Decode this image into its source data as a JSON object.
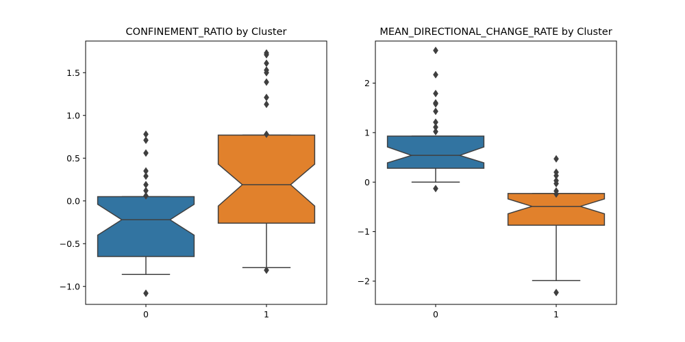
{
  "chart_data": [
    {
      "type": "box",
      "title": "CONFINEMENT_RATIO by Cluster",
      "xlabel": "",
      "ylabel": "",
      "categories": [
        "0",
        "1"
      ],
      "ylim": [
        -1.21,
        1.87
      ],
      "yticks": [
        -1.0,
        -0.5,
        0.0,
        0.5,
        1.0,
        1.5
      ],
      "ytick_labels": [
        "−1.0",
        "−0.5",
        "0.0",
        "0.5",
        "1.0",
        "1.5"
      ],
      "notched": true,
      "boxes": [
        {
          "category": "0",
          "color": "#3274a1",
          "q1": -0.65,
          "median": -0.22,
          "q3": 0.05,
          "notch_low": -0.4,
          "notch_high": -0.04,
          "whisker_low": -0.86,
          "whisker_high": 0.05,
          "outliers": [
            0.78,
            0.71,
            0.56,
            0.35,
            0.29,
            0.19,
            0.12,
            0.06,
            -1.08
          ]
        },
        {
          "category": "1",
          "color": "#e1812c",
          "q1": -0.26,
          "median": 0.19,
          "q3": 0.77,
          "notch_low": -0.06,
          "notch_high": 0.43,
          "whisker_low": -0.78,
          "whisker_high": 0.77,
          "outliers": [
            1.73,
            1.71,
            1.61,
            1.53,
            1.5,
            1.39,
            1.21,
            1.13,
            0.78,
            -0.81
          ]
        }
      ]
    },
    {
      "type": "box",
      "title": "MEAN_DIRECTIONAL_CHANGE_RATE by Cluster",
      "xlabel": "",
      "ylabel": "",
      "categories": [
        "0",
        "1"
      ],
      "ylim": [
        -2.47,
        2.85
      ],
      "yticks": [
        -2,
        -1,
        0,
        1,
        2
      ],
      "ytick_labels": [
        "−2",
        "−1",
        "0",
        "1",
        "2"
      ],
      "notched": true,
      "boxes": [
        {
          "category": "0",
          "color": "#3274a1",
          "q1": 0.28,
          "median": 0.54,
          "q3": 0.93,
          "notch_low": 0.39,
          "notch_high": 0.71,
          "whisker_low": 0.0,
          "whisker_high": 0.93,
          "outliers": [
            2.66,
            2.17,
            1.79,
            1.6,
            1.58,
            1.43,
            1.21,
            1.11,
            1.02,
            -0.13
          ]
        },
        {
          "category": "1",
          "color": "#e1812c",
          "q1": -0.87,
          "median": -0.49,
          "q3": -0.23,
          "notch_low": -0.64,
          "notch_high": -0.34,
          "whisker_low": -1.99,
          "whisker_high": -0.23,
          "outliers": [
            0.47,
            0.2,
            0.13,
            0.03,
            -0.03,
            -0.18,
            -0.24,
            -2.23
          ]
        }
      ]
    }
  ]
}
